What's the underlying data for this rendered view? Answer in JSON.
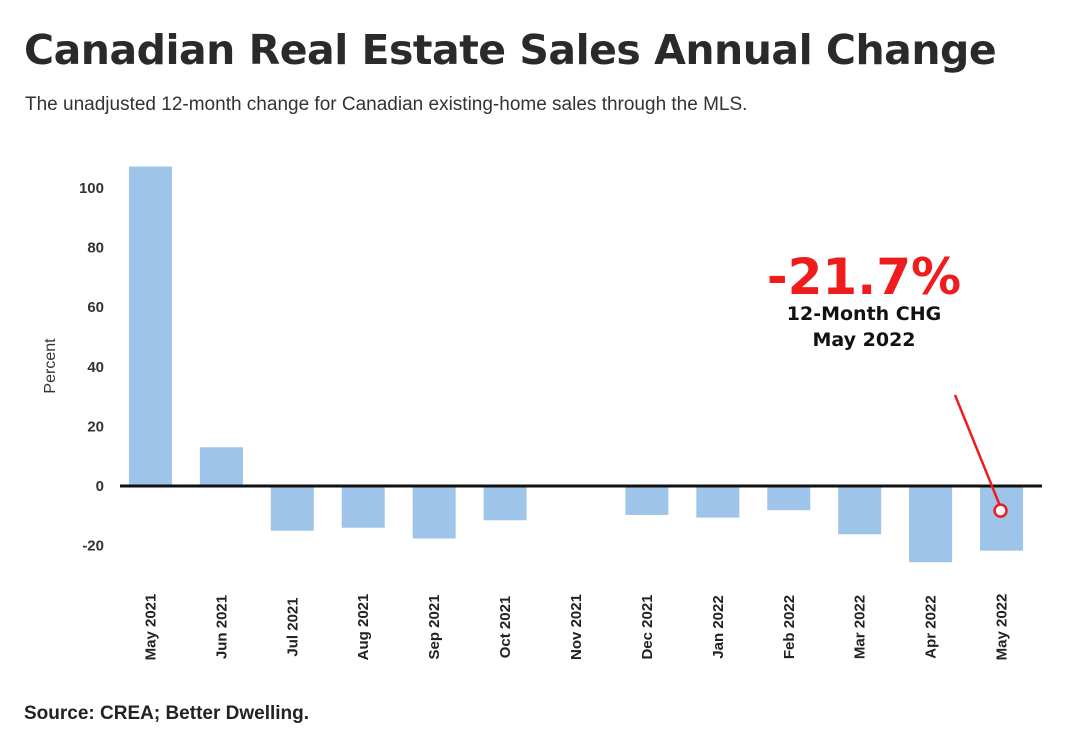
{
  "title": "Canadian Real Estate Sales Annual Change",
  "subtitle": "The unadjusted 12-month change for Canadian existing-home sales through the MLS.",
  "source": "Source: CREA; Better Dwelling.",
  "colors": {
    "bar": "#9ec4ea",
    "zero_line": "#111111",
    "callout": "#ee1c1c"
  },
  "chart_data": {
    "type": "bar",
    "categories": [
      "May 2021",
      "Jun 2021",
      "Jul 2021",
      "Aug 2021",
      "Sep 2021",
      "Oct 2021",
      "Nov 2021",
      "Dec 2021",
      "Jan 2022",
      "Feb 2022",
      "Mar 2022",
      "Apr 2022",
      "May 2022"
    ],
    "values": [
      107.2,
      13.0,
      -15.0,
      -14.0,
      -17.6,
      -11.5,
      0,
      -9.7,
      -10.6,
      -8.1,
      -16.2,
      -25.6,
      -21.7
    ],
    "ylabel": "Percent",
    "yticks": [
      100,
      80,
      60,
      40,
      20,
      0,
      -20
    ],
    "ylim": [
      -30,
      110
    ],
    "grid": false,
    "annotation": {
      "value": "-21.7%",
      "line1": "12-Month CHG",
      "line2": "May 2022",
      "target_category": "May 2022"
    }
  }
}
